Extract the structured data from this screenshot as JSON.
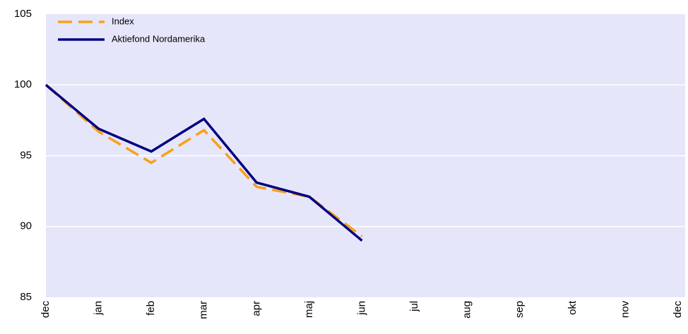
{
  "chart_data": {
    "type": "line",
    "categories": [
      "dec",
      "jan",
      "feb",
      "mar",
      "apr",
      "maj",
      "jun",
      "jul",
      "aug",
      "sep",
      "okt",
      "nov",
      "dec"
    ],
    "series": [
      {
        "name": "Index",
        "color": "#f7a11a",
        "dashed": true,
        "values": [
          100,
          96.7,
          94.5,
          96.8,
          92.8,
          92.1,
          89.3,
          null,
          null,
          null,
          null,
          null,
          null
        ]
      },
      {
        "name": "Aktiefond Nordamerika",
        "color": "#000080",
        "dashed": false,
        "values": [
          100,
          96.9,
          95.3,
          97.6,
          93.1,
          92.1,
          89.0,
          null,
          null,
          null,
          null,
          null,
          null
        ]
      }
    ],
    "ylim": [
      85,
      105
    ],
    "yticks": [
      85,
      90,
      95,
      100,
      105
    ],
    "grid": true,
    "legend": "upper left",
    "plot_background": "#e6e6fa"
  }
}
